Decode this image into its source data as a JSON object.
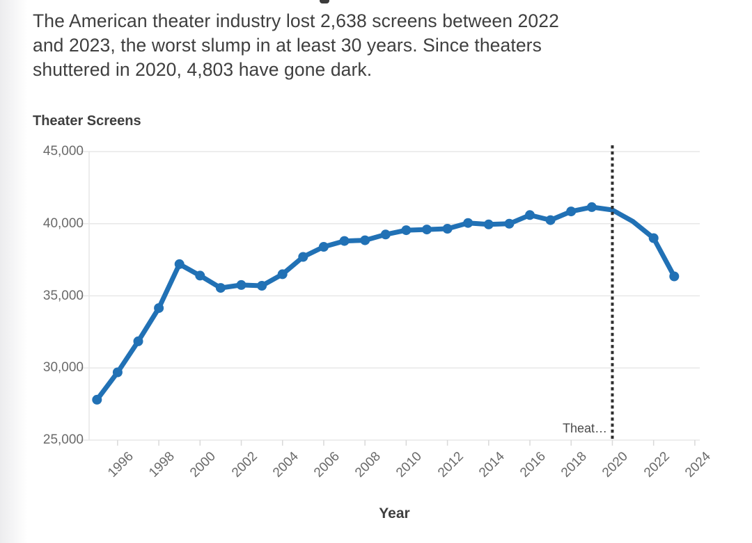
{
  "subtitle": {
    "lines": [
      "The American theater industry lost 2,638 screens between 2022",
      "and 2023, the worst slump in at least 30 years. Since theaters",
      "shuttered in 2020, 4,803 have gone dark."
    ]
  },
  "chart_data": {
    "type": "line",
    "title": "Theater Screens",
    "xlabel": "Year",
    "ylabel": "",
    "x": [
      1995,
      1996,
      1997,
      1998,
      1999,
      2000,
      2001,
      2002,
      2003,
      2004,
      2005,
      2006,
      2007,
      2008,
      2009,
      2010,
      2011,
      2012,
      2013,
      2014,
      2015,
      2016,
      2017,
      2018,
      2019,
      2020,
      2021,
      2022,
      2023
    ],
    "values": [
      27800,
      29700,
      31850,
      34150,
      37200,
      36400,
      35550,
      35750,
      35700,
      36500,
      37700,
      38400,
      38800,
      38850,
      39250,
      39550,
      39600,
      39650,
      40050,
      39950,
      40000,
      40600,
      40250,
      40850,
      41150,
      40950,
      40150,
      39000,
      36350
    ],
    "marker_hidden_x": [
      2020,
      2021
    ],
    "xlim": [
      1994.62,
      2024.24
    ],
    "ylim": [
      25000,
      45000
    ],
    "yticks": [
      45000,
      40000,
      35000,
      30000,
      25000
    ],
    "ytick_labels": [
      "45,000",
      "40,000",
      "35,000",
      "30,000",
      "25,000"
    ],
    "xticks": [
      1996,
      1998,
      2000,
      2002,
      2004,
      2006,
      2008,
      2010,
      2012,
      2014,
      2016,
      2018,
      2020,
      2022,
      2024
    ],
    "xtick_labels": [
      "1996",
      "1998",
      "2000",
      "2002",
      "2004",
      "2006",
      "2008",
      "2010",
      "2012",
      "2014",
      "2016",
      "2018",
      "2020",
      "2022",
      "2024"
    ],
    "grid": "horizontal",
    "legend": "none",
    "colors": {
      "line": "#2171b5",
      "grid": "#e7e7e7",
      "tick": "#d9d9d9",
      "axis_text": "#6a6a6a",
      "title_text": "#3f3f3f",
      "annotation_text": "#4a4a4a",
      "event_line": "#2e2e2e"
    },
    "event_line": {
      "x": 2020,
      "style": "dotted",
      "label": "Theat…"
    }
  }
}
